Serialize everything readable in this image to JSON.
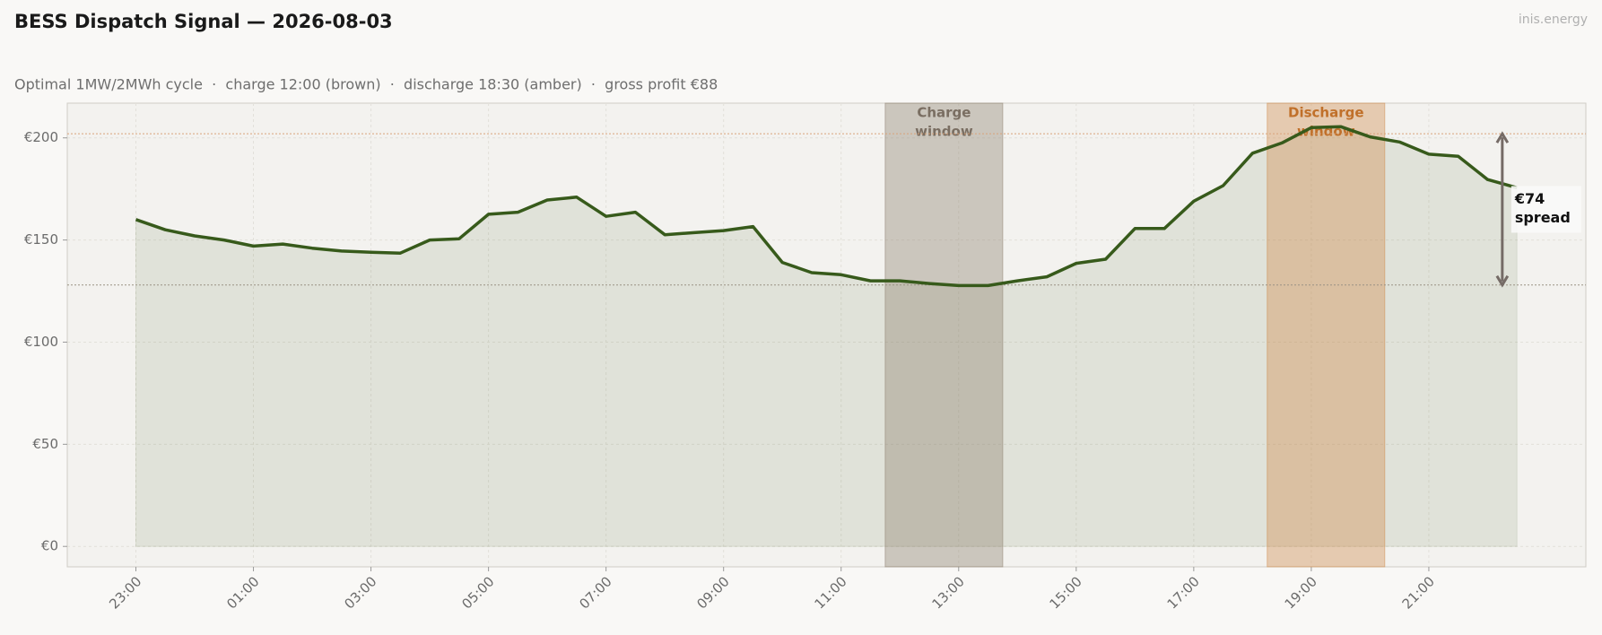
{
  "title": "BESS Dispatch Signal — 2026-08-03",
  "watermark": "inis.energy",
  "chart_data": {
    "type": "line",
    "subtitle": "Optimal 1MW/2MWh cycle  ·  charge 12:00 (brown)  ·  discharge 18:30 (amber)  ·  gross profit €88",
    "categories": [
      "23:00",
      null,
      null,
      null,
      "01:00",
      null,
      null,
      null,
      "03:00",
      null,
      null,
      null,
      "05:00",
      null,
      null,
      null,
      "07:00",
      null,
      null,
      null,
      "09:00",
      null,
      null,
      null,
      "11:00",
      null,
      null,
      null,
      "13:00",
      null,
      null,
      null,
      "15:00",
      null,
      null,
      null,
      "17:00",
      null,
      null,
      null,
      "19:00",
      null,
      null,
      null,
      "21:00",
      null,
      null,
      null
    ],
    "values": [
      160,
      155,
      152,
      150,
      147,
      148,
      146,
      144.6,
      144,
      143.6,
      150,
      150.6,
      162.6,
      163.6,
      169.6,
      171,
      161.6,
      163.6,
      152.6,
      153.6,
      154.6,
      156.6,
      139,
      134,
      133,
      130,
      130,
      128.7,
      127.7,
      127.7,
      130,
      132,
      138.6,
      140.6,
      155.6,
      155.6,
      169,
      176.6,
      192.5,
      197.5,
      205,
      205.5,
      200.5,
      198,
      192,
      191,
      179.6,
      175.6
    ],
    "color": "#375a1b",
    "ylim": [
      -10,
      217
    ],
    "yticks": [
      {
        "value": 0,
        "label": "€0"
      },
      {
        "value": 50,
        "label": "€50"
      },
      {
        "value": 100,
        "label": "€100"
      },
      {
        "value": 150,
        "label": "€150"
      },
      {
        "value": 200,
        "label": "€200"
      }
    ],
    "grid": true,
    "windows": [
      {
        "label": [
          "Charge",
          "window"
        ],
        "start": 25.5,
        "end": 29.5,
        "color": "#8b7d6b",
        "text_color": "#7a6e62"
      },
      {
        "label": [
          "Discharge",
          "window"
        ],
        "start": 38.5,
        "end": 42.5,
        "color": "#d08a4a",
        "text_color": "#c0702a"
      }
    ],
    "reference_lines": [
      {
        "value": 128,
        "color": "#9a9184"
      },
      {
        "value": 202,
        "color": "#d9a27a"
      }
    ],
    "annotation": {
      "lines": [
        "€74",
        "spread"
      ]
    }
  }
}
